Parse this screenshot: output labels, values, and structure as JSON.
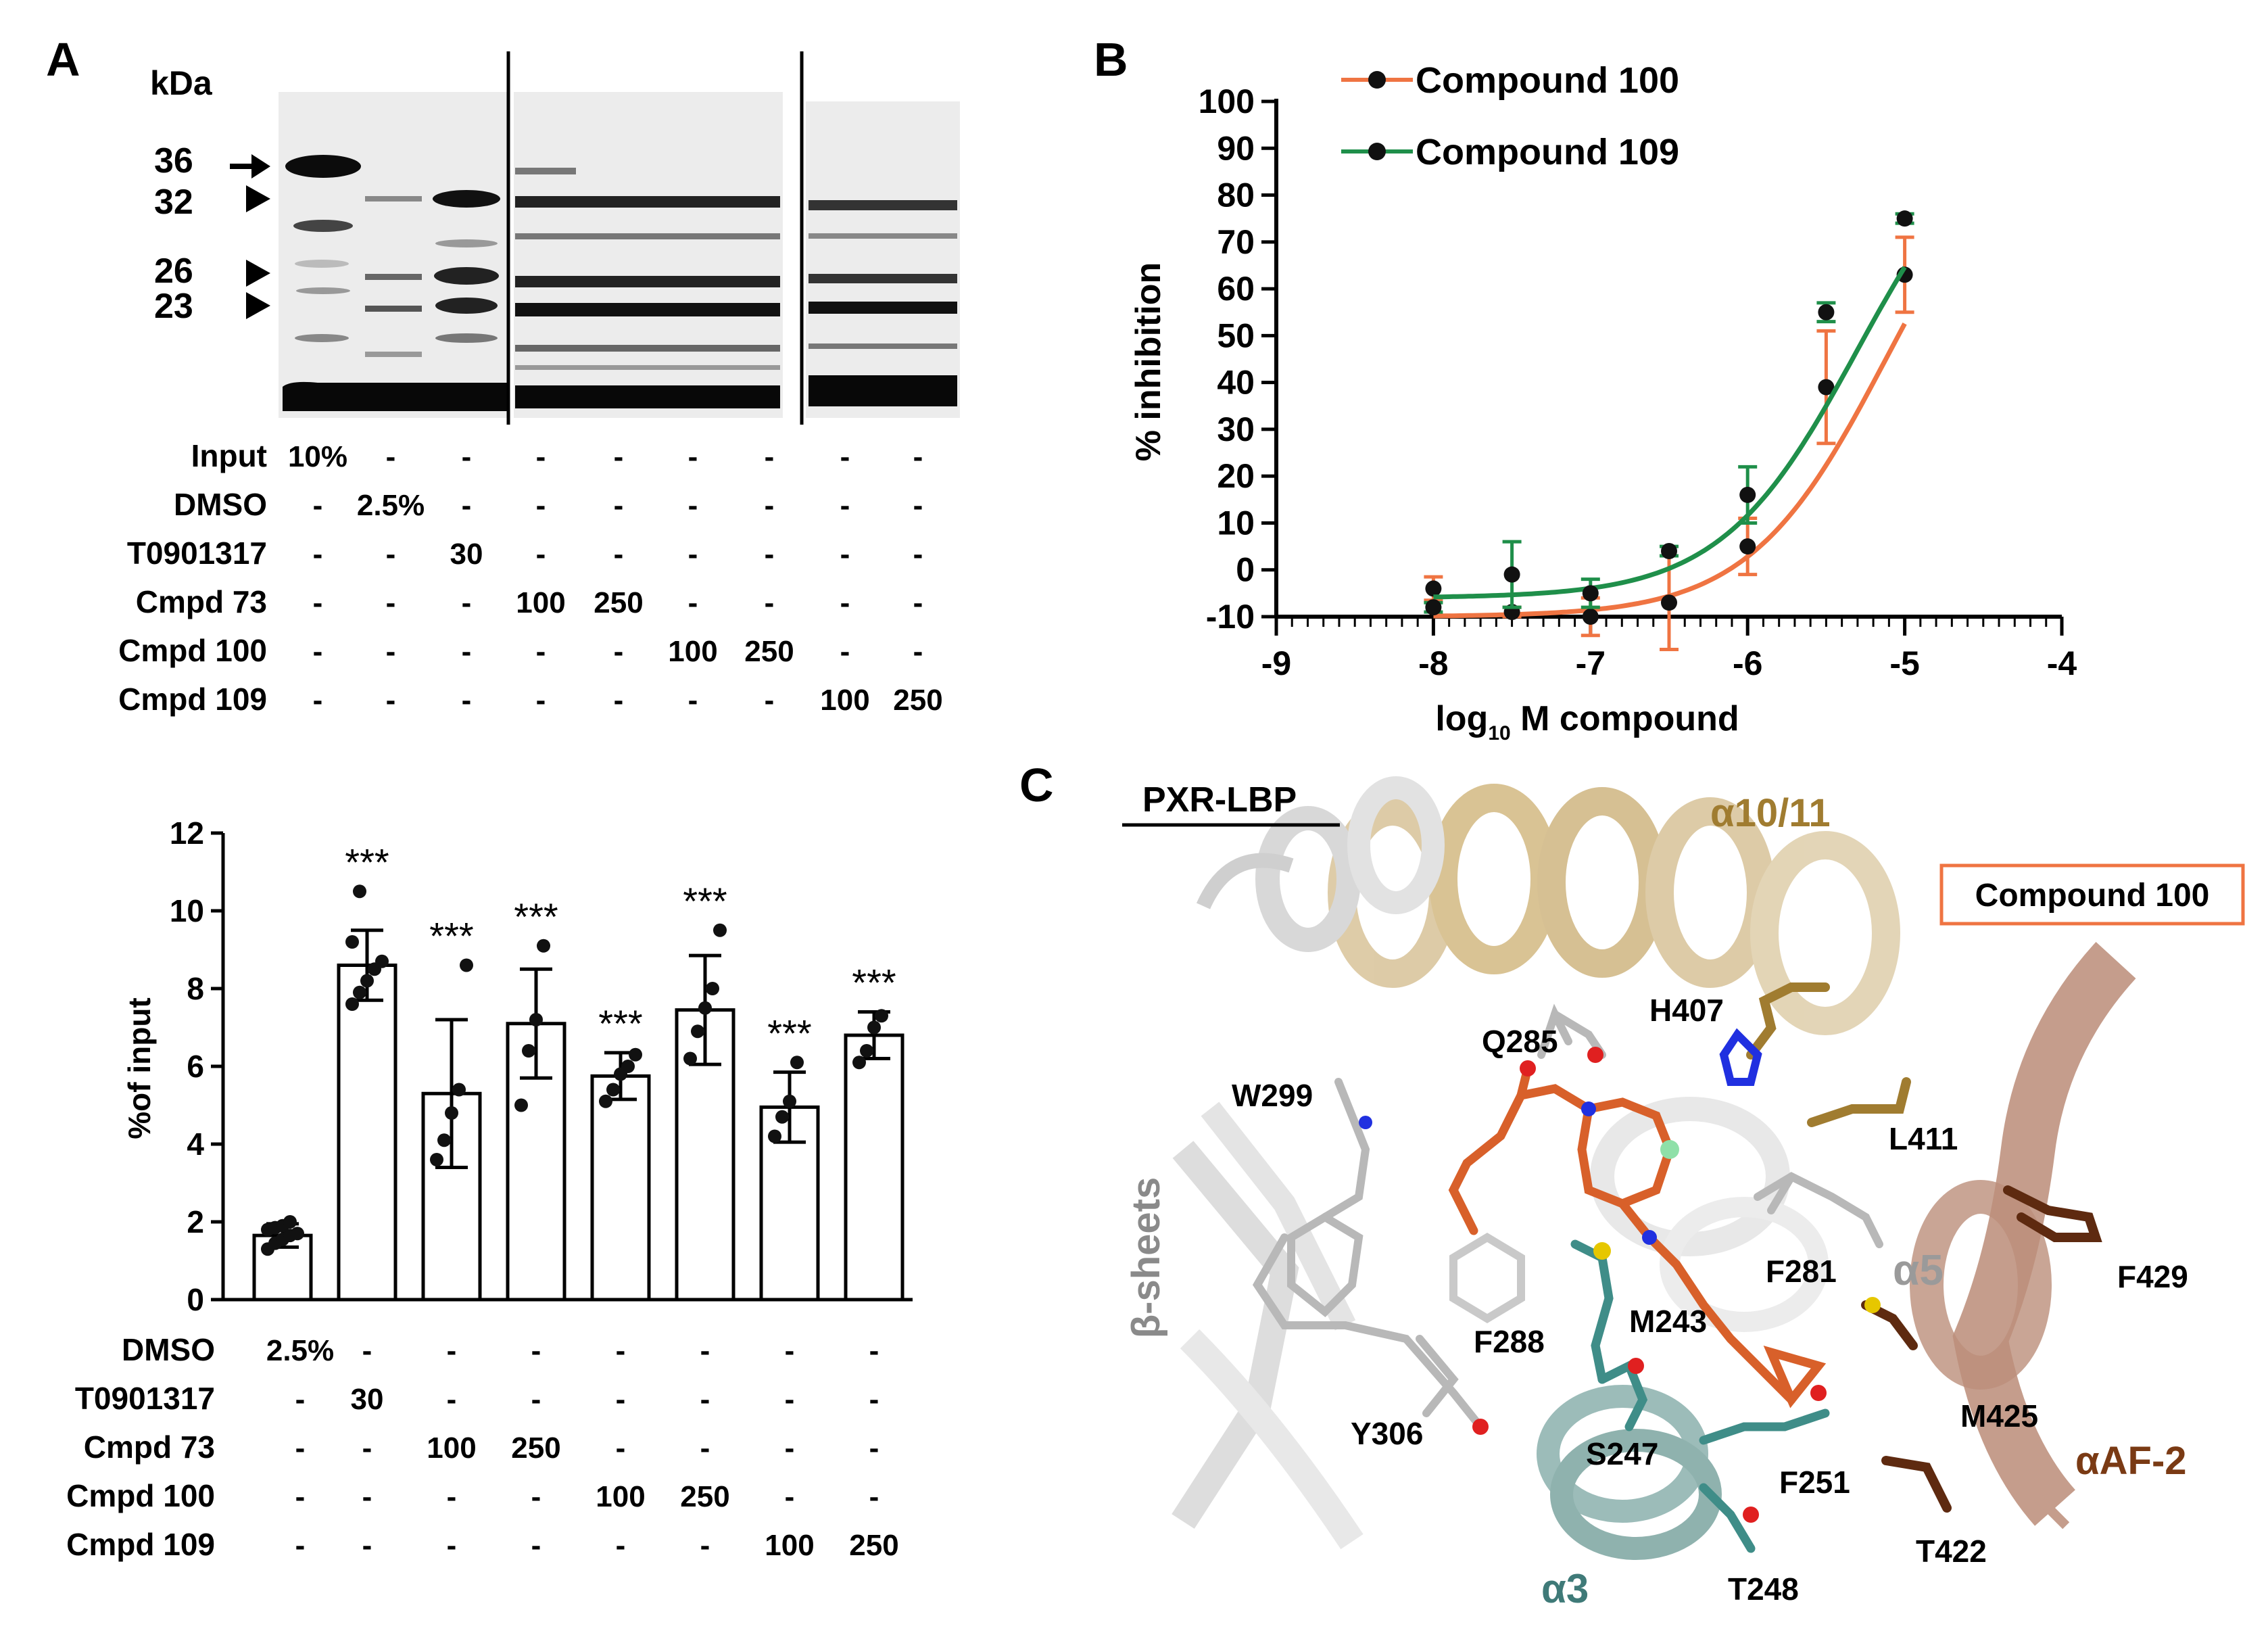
{
  "panel_labels": {
    "a": "A",
    "b": "B",
    "c": "C"
  },
  "blot": {
    "kda_label": "kDa",
    "markers": [
      {
        "label": "36",
        "mark": "arrow"
      },
      {
        "label": "32",
        "mark": "triangle"
      },
      {
        "label": "26",
        "mark": "triangle"
      },
      {
        "label": "23",
        "mark": "triangle"
      }
    ],
    "conditions": [
      {
        "name": "Input",
        "cells": [
          "10%",
          "-",
          "-",
          "-",
          "-",
          "-",
          "-",
          "-",
          "-"
        ]
      },
      {
        "name": "DMSO",
        "cells": [
          "-",
          "2.5%",
          "-",
          "-",
          "-",
          "-",
          "-",
          "-",
          "-"
        ]
      },
      {
        "name": "T0901317",
        "cells": [
          "-",
          "-",
          "30",
          "-",
          "-",
          "-",
          "-",
          "-",
          "-"
        ]
      },
      {
        "name": "Cmpd 73",
        "cells": [
          "-",
          "-",
          "-",
          "100",
          "250",
          "-",
          "-",
          "-",
          "-"
        ]
      },
      {
        "name": "Cmpd 100",
        "cells": [
          "-",
          "-",
          "-",
          "-",
          "-",
          "100",
          "250",
          "-",
          "-"
        ]
      },
      {
        "name": "Cmpd 109",
        "cells": [
          "-",
          "-",
          "-",
          "-",
          "-",
          "-",
          "-",
          "100",
          "250"
        ]
      }
    ]
  },
  "chart_data": [
    {
      "type": "bar",
      "id": "A-bottom",
      "title": "",
      "xlabel": "",
      "ylabel": "%of input",
      "ylim": [
        0,
        12
      ],
      "yticks": [
        "0",
        "2",
        "4",
        "6",
        "8",
        "10",
        "12"
      ],
      "categories": [
        "DMSO 2.5%",
        "T0901317 30",
        "Cmpd 73 100",
        "Cmpd 73 250",
        "Cmpd 100 100",
        "Cmpd 100 250",
        "Cmpd 109 100",
        "Cmpd 109 250"
      ],
      "values": [
        1.65,
        8.6,
        5.3,
        7.1,
        5.75,
        7.45,
        4.95,
        6.8
      ],
      "errors": [
        0.3,
        0.9,
        1.9,
        1.4,
        0.6,
        1.4,
        0.9,
        0.6
      ],
      "significance": [
        "",
        "***",
        "***",
        "***",
        "***",
        "***",
        "***",
        "***"
      ],
      "points": [
        [
          1.3,
          1.45,
          1.55,
          1.65,
          1.7,
          1.8,
          1.85,
          1.9,
          2.0
        ],
        [
          7.6,
          7.9,
          8.2,
          8.5,
          8.7,
          9.2,
          10.5
        ],
        [
          3.6,
          4.1,
          4.8,
          5.4,
          8.6
        ],
        [
          5.0,
          6.4,
          7.2,
          9.1
        ],
        [
          5.1,
          5.4,
          5.8,
          6.0,
          6.3
        ],
        [
          6.2,
          6.9,
          7.5,
          8.0,
          9.5
        ],
        [
          4.2,
          4.7,
          5.1,
          6.1
        ],
        [
          6.1,
          6.4,
          7.0,
          7.3
        ]
      ],
      "conditions": [
        {
          "name": "DMSO",
          "cells": [
            "2.5%",
            "-",
            "-",
            "-",
            "-",
            "-",
            "-",
            "-"
          ]
        },
        {
          "name": "T0901317",
          "cells": [
            "-",
            "30",
            "-",
            "-",
            "-",
            "-",
            "-",
            "-"
          ]
        },
        {
          "name": "Cmpd 73",
          "cells": [
            "-",
            "-",
            "100",
            "250",
            "-",
            "-",
            "-",
            "-"
          ]
        },
        {
          "name": "Cmpd 100",
          "cells": [
            "-",
            "-",
            "-",
            "-",
            "100",
            "250",
            "-",
            "-"
          ]
        },
        {
          "name": "Cmpd 109",
          "cells": [
            "-",
            "-",
            "-",
            "-",
            "-",
            "-",
            "100",
            "250"
          ]
        }
      ]
    },
    {
      "type": "line",
      "id": "B",
      "title": "",
      "xlabel_main": "log",
      "xlabel_sub": "10",
      "xlabel_rest": " M compound",
      "ylabel": "% inhibition",
      "xlim": [
        -9,
        -4
      ],
      "ylim": [
        -10,
        100
      ],
      "xticks": [
        -9,
        -8,
        -7,
        -6,
        -5,
        -4
      ],
      "xtick_labels": [
        "-9",
        "-8",
        "-7",
        "-6",
        "-5",
        "-4"
      ],
      "yticks": [
        -10,
        0,
        10,
        20,
        30,
        40,
        50,
        60,
        70,
        80,
        90,
        100
      ],
      "ytick_labels": [
        "-10",
        "0",
        "10",
        "20",
        "30",
        "40",
        "50",
        "60",
        "70",
        "80",
        "90",
        "100"
      ],
      "series": [
        {
          "name": "Compound 100",
          "color": "#ef7442",
          "x": [
            -8,
            -7.5,
            -7,
            -6.5,
            -6,
            -5.5,
            -5
          ],
          "y": [
            -4,
            -9,
            -10,
            -7,
            5,
            39,
            63
          ],
          "err": [
            2.5,
            1,
            4,
            10,
            6,
            12,
            8
          ],
          "fit": {
            "bottom": -10,
            "top": 100,
            "logec50": -5.12,
            "hill": 1.0
          }
        },
        {
          "name": "Compound 109",
          "color": "#1f8f4a",
          "x": [
            -8,
            -7.5,
            -7,
            -6.5,
            -6,
            -5.5,
            -5
          ],
          "y": [
            -8,
            -1,
            -5,
            4,
            16,
            55,
            75
          ],
          "err": [
            1,
            7,
            3,
            1,
            6,
            2,
            1
          ],
          "fit": {
            "bottom": -6,
            "top": 100,
            "logec50": -5.3,
            "hill": 1.0
          }
        }
      ]
    }
  ],
  "structure": {
    "title": "PXR-LBP",
    "legend": "Compound 100",
    "regions": [
      {
        "label": "α10/11",
        "color": "#a07c30"
      },
      {
        "label": "β-sheets",
        "color": "#8a8a8a"
      },
      {
        "label": "α5",
        "color": "#9a9a9a"
      },
      {
        "label": "αAF-2",
        "color": "#7a3a14"
      },
      {
        "label": "α3",
        "color": "#3f7a78"
      }
    ],
    "residues": [
      "H407",
      "Q285",
      "W299",
      "L411",
      "F281",
      "F429",
      "F288",
      "M243",
      "Y306",
      "S247",
      "F251",
      "M425",
      "T422",
      "T248"
    ]
  }
}
